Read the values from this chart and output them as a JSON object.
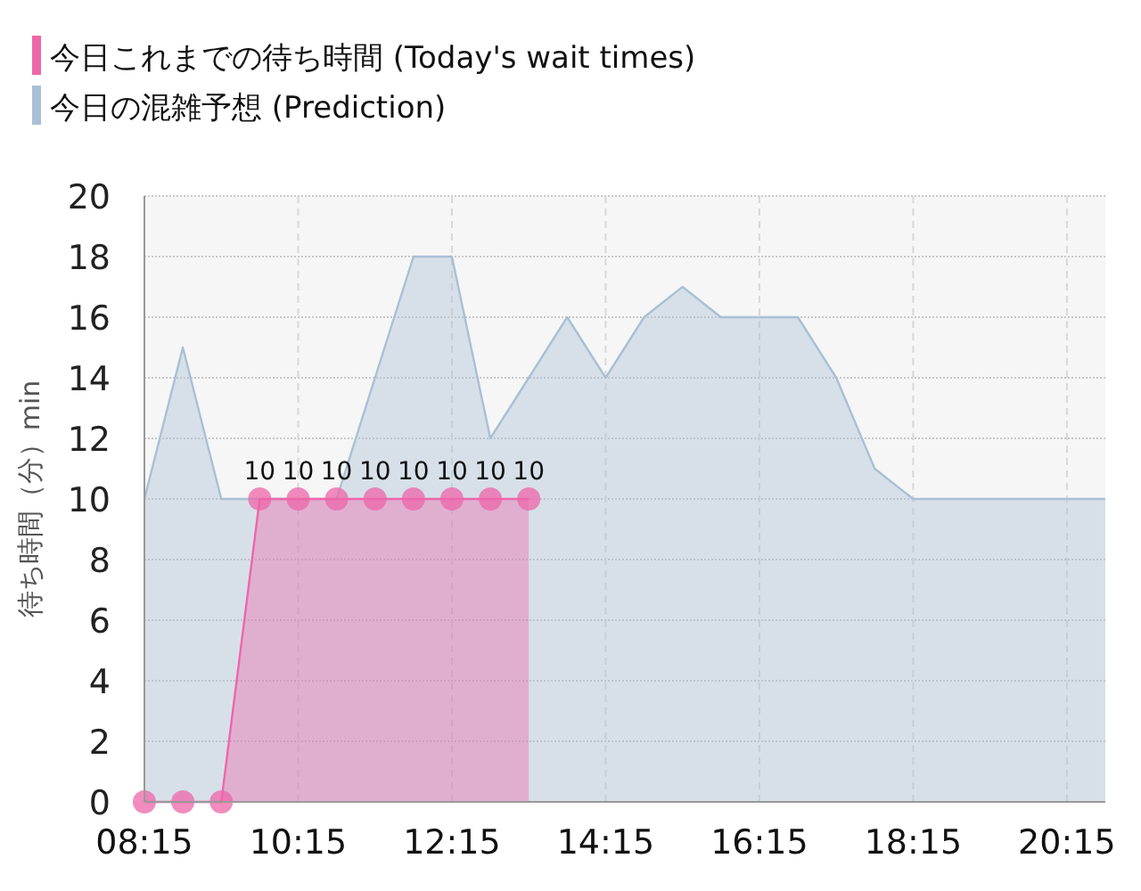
{
  "chart_data": {
    "type": "area",
    "ylabel": "待ち時間（分）min",
    "xlim": [
      8.25,
      20.75
    ],
    "ylim": [
      0,
      20
    ],
    "xticks": [
      {
        "value": 8.25,
        "label": "08:15"
      },
      {
        "value": 10.25,
        "label": "10:15"
      },
      {
        "value": 12.25,
        "label": "12:15"
      },
      {
        "value": 14.25,
        "label": "14:15"
      },
      {
        "value": 16.25,
        "label": "16:15"
      },
      {
        "value": 18.25,
        "label": "18:15"
      },
      {
        "value": 20.25,
        "label": "20:15"
      }
    ],
    "yticks": [
      0,
      2,
      4,
      6,
      8,
      10,
      12,
      14,
      16,
      18,
      20
    ],
    "grid": true,
    "legend": "top left",
    "series": [
      {
        "name": "今日の混雑予想 (Prediction)",
        "color": "#a9c0d6",
        "marker": "none",
        "x": [
          8.25,
          8.75,
          9.25,
          9.75,
          10.25,
          10.75,
          11.25,
          11.75,
          12.25,
          12.75,
          13.25,
          13.75,
          14.25,
          14.75,
          15.25,
          15.75,
          16.25,
          16.75,
          17.25,
          17.75,
          18.25,
          18.75,
          19.25,
          19.75,
          20.25,
          20.75
        ],
        "values": [
          10,
          15,
          10,
          10,
          10,
          10,
          14,
          18,
          18,
          12,
          14,
          16,
          14,
          16,
          17,
          16,
          16,
          16,
          14,
          11,
          10,
          10,
          10,
          10,
          10,
          10
        ]
      },
      {
        "name": "今日これまでの待ち時間 (Today's wait times)",
        "color": "#ee66aa",
        "marker": "circle",
        "x": [
          8.25,
          8.75,
          9.25,
          9.75,
          10.25,
          10.75,
          11.25,
          11.75,
          12.25,
          12.75,
          13.25
        ],
        "values": [
          0,
          0,
          0,
          10,
          10,
          10,
          10,
          10,
          10,
          10,
          10
        ],
        "value_labels": [
          null,
          null,
          null,
          "10",
          "10",
          "10",
          "10",
          "10",
          "10",
          "10",
          "10"
        ]
      }
    ]
  }
}
